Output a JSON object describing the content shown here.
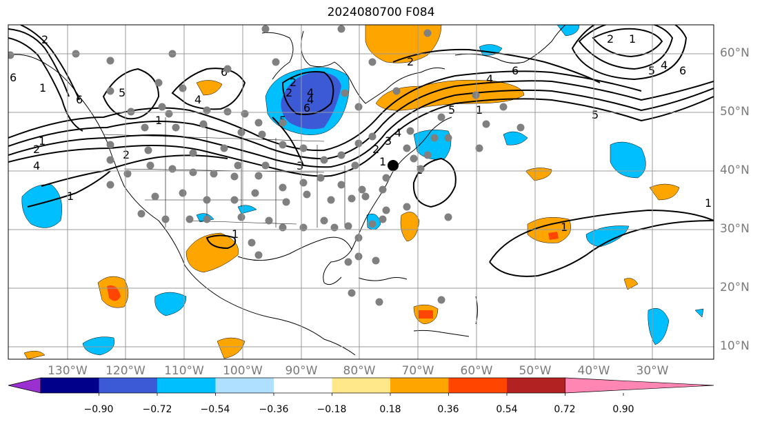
{
  "title": "2024080700 F084",
  "lon_labels": [
    "130°W",
    "120°W",
    "110°W",
    "100°W",
    "90°W",
    "80°W",
    "70°W",
    "60°W",
    "50°W",
    "40°W",
    "30°W"
  ],
  "lat_labels": [
    "60°N",
    "50°N",
    "40°N",
    "30°N",
    "20°N",
    "10°N"
  ],
  "colorbar": {
    "ticks": [
      "−0.90",
      "−0.72",
      "−0.54",
      "−0.36",
      "−0.18",
      "0.18",
      "0.36",
      "0.54",
      "0.72",
      "0.90"
    ],
    "colors": [
      "#9b30d0",
      "#00008b",
      "#3d5ad6",
      "#00bfff",
      "#b0e0ff",
      "#ffffff",
      "#ffe88a",
      "#ffa500",
      "#ff4500",
      "#b22222",
      "#ff85b3"
    ]
  },
  "contour_labels": [
    "6",
    "2",
    "1",
    "6",
    "4",
    "5",
    "2",
    "1",
    "6",
    "5",
    "4",
    "6",
    "2",
    "6",
    "4",
    "1",
    "2",
    "4",
    "1",
    "5",
    "1",
    "2",
    "4",
    "5",
    "4",
    "3",
    "2",
    "2",
    "1",
    "1",
    "1",
    "1",
    "2",
    "3",
    "4",
    "1",
    "1",
    "6",
    "5"
  ],
  "marker": {
    "color": "#000000"
  },
  "station_color": "#808080"
}
